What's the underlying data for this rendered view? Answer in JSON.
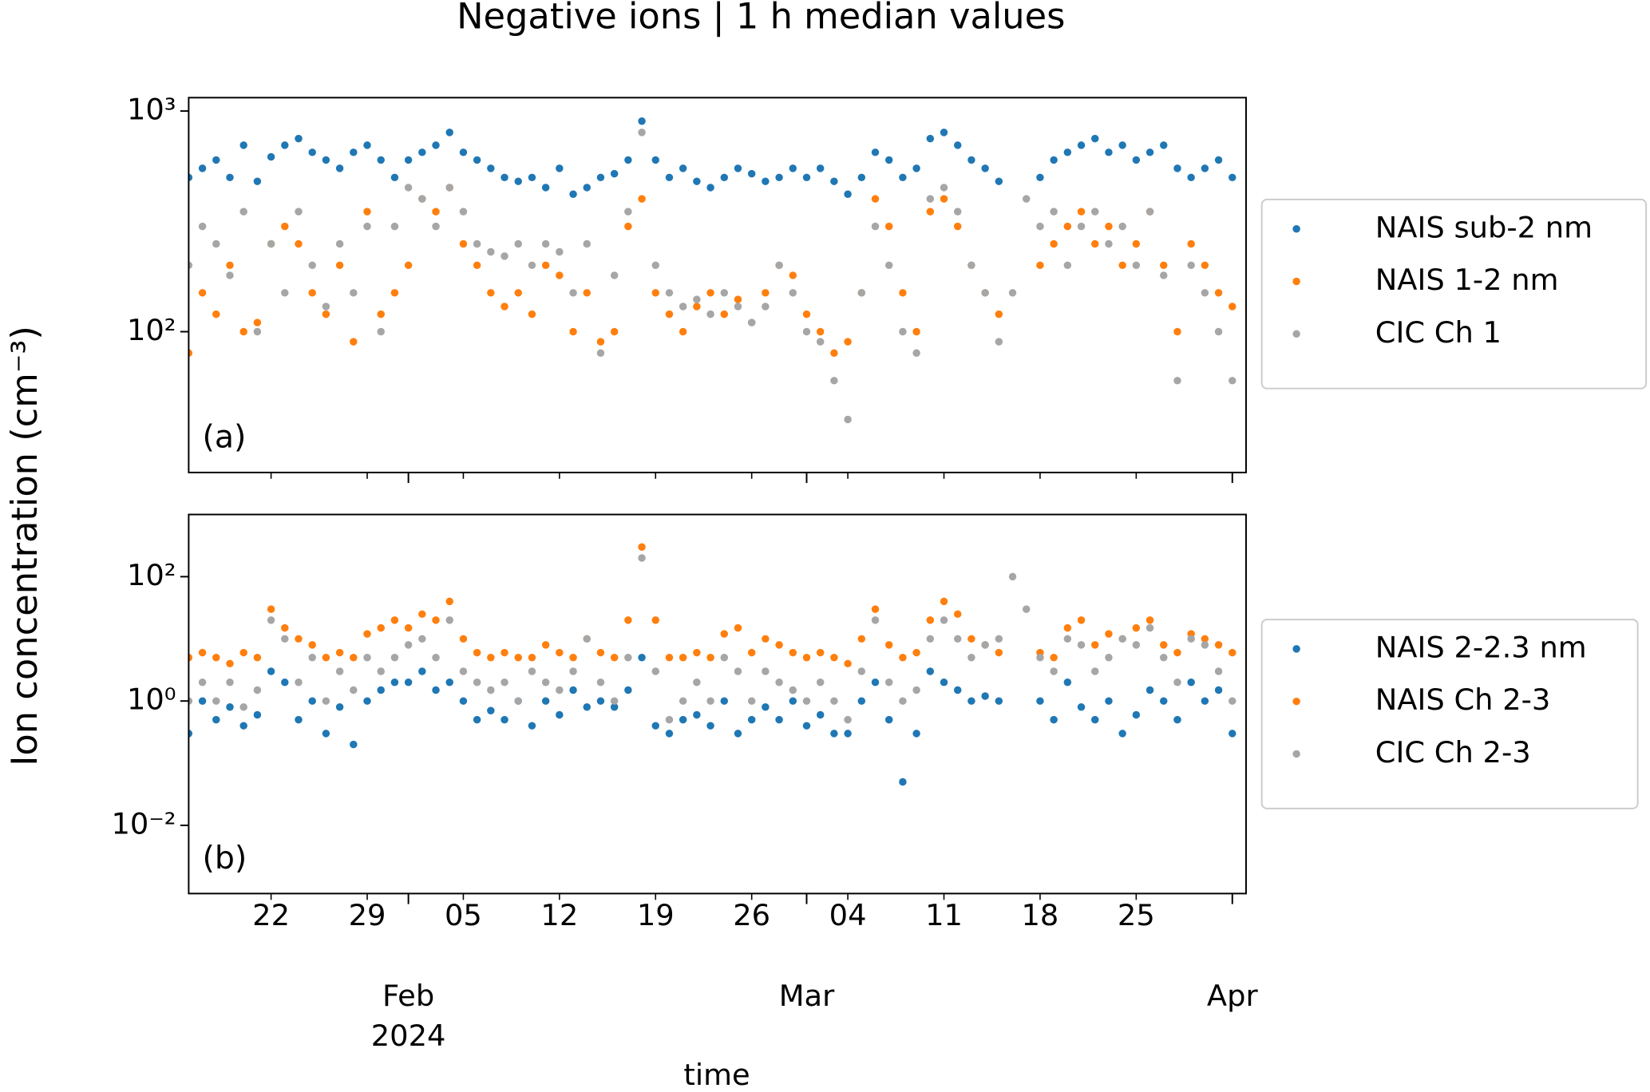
{
  "figure": {
    "title": "Negative ions | 1 h median values",
    "ylabel": "Ion concentration (cm⁻³)",
    "xlabel": "time"
  },
  "chart_data": [
    {
      "type": "scatter",
      "panel_label": "(a)",
      "log_y": true,
      "legend": "outside right",
      "xtick_labels": false,
      "xlim": [
        "2024-01-16",
        "2024-04-02"
      ],
      "ylim": [
        23,
        1150
      ],
      "yticks": [
        {
          "value": 100,
          "label": "10²"
        },
        {
          "value": 1000,
          "label": "10³"
        }
      ],
      "xticks": [
        "2024-01-22",
        "2024-01-29",
        "2024-02-05",
        "2024-02-12",
        "2024-02-19",
        "2024-02-26",
        "2024-03-04",
        "2024-03-11",
        "2024-03-18",
        "2024-03-25"
      ],
      "xticks_major": [
        "2024-02-01",
        "2024-03-01",
        "2024-04-01"
      ],
      "x": [
        "2024-01-16",
        "2024-01-17",
        "2024-01-18",
        "2024-01-19",
        "2024-01-20",
        "2024-01-21",
        "2024-01-22",
        "2024-01-23",
        "2024-01-24",
        "2024-01-25",
        "2024-01-26",
        "2024-01-27",
        "2024-01-28",
        "2024-01-29",
        "2024-01-30",
        "2024-01-31",
        "2024-02-01",
        "2024-02-02",
        "2024-02-03",
        "2024-02-04",
        "2024-02-05",
        "2024-02-06",
        "2024-02-07",
        "2024-02-08",
        "2024-02-09",
        "2024-02-10",
        "2024-02-11",
        "2024-02-12",
        "2024-02-13",
        "2024-02-14",
        "2024-02-15",
        "2024-02-16",
        "2024-02-17",
        "2024-02-18",
        "2024-02-19",
        "2024-02-20",
        "2024-02-21",
        "2024-02-22",
        "2024-02-23",
        "2024-02-24",
        "2024-02-25",
        "2024-02-26",
        "2024-02-27",
        "2024-02-28",
        "2024-02-29",
        "2024-03-01",
        "2024-03-02",
        "2024-03-03",
        "2024-03-04",
        "2024-03-05",
        "2024-03-06",
        "2024-03-07",
        "2024-03-08",
        "2024-03-09",
        "2024-03-10",
        "2024-03-11",
        "2024-03-12",
        "2024-03-13",
        "2024-03-14",
        "2024-03-15",
        "2024-03-16",
        "2024-03-17",
        "2024-03-18",
        "2024-03-19",
        "2024-03-20",
        "2024-03-21",
        "2024-03-22",
        "2024-03-23",
        "2024-03-24",
        "2024-03-25",
        "2024-03-26",
        "2024-03-27",
        "2024-03-28",
        "2024-03-29",
        "2024-03-30",
        "2024-03-31",
        "2024-04-01"
      ],
      "series": [
        {
          "name": "NAIS sub-2 nm",
          "color": "#1f77b4",
          "values": [
            500,
            550,
            600,
            500,
            700,
            480,
            620,
            700,
            750,
            650,
            600,
            550,
            650,
            700,
            600,
            500,
            600,
            650,
            700,
            800,
            650,
            600,
            550,
            500,
            480,
            500,
            450,
            550,
            420,
            450,
            500,
            520,
            600,
            900,
            600,
            500,
            550,
            480,
            450,
            500,
            550,
            520,
            480,
            500,
            550,
            500,
            550,
            480,
            420,
            500,
            650,
            600,
            500,
            550,
            750,
            800,
            700,
            600,
            550,
            480,
            null,
            null,
            500,
            600,
            650,
            700,
            750,
            650,
            700,
            600,
            650,
            700,
            550,
            500,
            550,
            600,
            500
          ]
        },
        {
          "name": "NAIS 1-2 nm",
          "color": "#ff7f0e",
          "values": [
            80,
            150,
            120,
            200,
            100,
            110,
            250,
            300,
            250,
            150,
            120,
            200,
            90,
            350,
            120,
            150,
            200,
            400,
            350,
            450,
            250,
            200,
            150,
            130,
            150,
            120,
            200,
            180,
            100,
            150,
            90,
            100,
            300,
            400,
            150,
            120,
            100,
            130,
            150,
            120,
            140,
            110,
            150,
            200,
            180,
            120,
            100,
            80,
            90,
            150,
            400,
            300,
            150,
            100,
            350,
            400,
            300,
            200,
            150,
            120,
            null,
            null,
            200,
            250,
            300,
            350,
            250,
            300,
            200,
            250,
            350,
            200,
            100,
            250,
            200,
            150,
            130
          ]
        },
        {
          "name": "CIC Ch 1",
          "color": "#a6a6a6",
          "values": [
            200,
            300,
            250,
            180,
            350,
            100,
            250,
            150,
            350,
            200,
            130,
            250,
            150,
            300,
            100,
            300,
            450,
            400,
            300,
            450,
            350,
            250,
            230,
            220,
            250,
            200,
            250,
            230,
            150,
            250,
            80,
            180,
            350,
            800,
            200,
            150,
            130,
            140,
            120,
            150,
            130,
            110,
            130,
            200,
            150,
            100,
            90,
            60,
            40,
            150,
            300,
            200,
            100,
            80,
            400,
            450,
            350,
            200,
            150,
            90,
            150,
            400,
            300,
            350,
            200,
            300,
            350,
            250,
            300,
            200,
            350,
            180,
            60,
            200,
            150,
            100,
            60
          ]
        }
      ]
    },
    {
      "type": "scatter",
      "panel_label": "(b)",
      "log_y": true,
      "legend": "outside right",
      "xtick_labels": true,
      "xlim": [
        "2024-01-16",
        "2024-04-02"
      ],
      "ylim": [
        0.0008,
        1000
      ],
      "yticks": [
        {
          "value": 0.01,
          "label": "10⁻²"
        },
        {
          "value": 1,
          "label": "10⁰"
        },
        {
          "value": 100,
          "label": "10²"
        }
      ],
      "xticks": [
        {
          "value": "2024-01-22",
          "label": "22"
        },
        {
          "value": "2024-01-29",
          "label": "29"
        },
        {
          "value": "2024-02-05",
          "label": "05"
        },
        {
          "value": "2024-02-12",
          "label": "12"
        },
        {
          "value": "2024-02-19",
          "label": "19"
        },
        {
          "value": "2024-02-26",
          "label": "26"
        },
        {
          "value": "2024-03-04",
          "label": "04"
        },
        {
          "value": "2024-03-11",
          "label": "11"
        },
        {
          "value": "2024-03-18",
          "label": "18"
        },
        {
          "value": "2024-03-25",
          "label": "25"
        }
      ],
      "xticks_major": [
        {
          "value": "2024-02-01",
          "label": "Feb"
        },
        {
          "value": "2024-03-01",
          "label": "Mar"
        },
        {
          "value": "2024-04-01",
          "label": "Apr"
        }
      ],
      "year_label": "2024",
      "x": [
        "2024-01-16",
        "2024-01-17",
        "2024-01-18",
        "2024-01-19",
        "2024-01-20",
        "2024-01-21",
        "2024-01-22",
        "2024-01-23",
        "2024-01-24",
        "2024-01-25",
        "2024-01-26",
        "2024-01-27",
        "2024-01-28",
        "2024-01-29",
        "2024-01-30",
        "2024-01-31",
        "2024-02-01",
        "2024-02-02",
        "2024-02-03",
        "2024-02-04",
        "2024-02-05",
        "2024-02-06",
        "2024-02-07",
        "2024-02-08",
        "2024-02-09",
        "2024-02-10",
        "2024-02-11",
        "2024-02-12",
        "2024-02-13",
        "2024-02-14",
        "2024-02-15",
        "2024-02-16",
        "2024-02-17",
        "2024-02-18",
        "2024-02-19",
        "2024-02-20",
        "2024-02-21",
        "2024-02-22",
        "2024-02-23",
        "2024-02-24",
        "2024-02-25",
        "2024-02-26",
        "2024-02-27",
        "2024-02-28",
        "2024-02-29",
        "2024-03-01",
        "2024-03-02",
        "2024-03-03",
        "2024-03-04",
        "2024-03-05",
        "2024-03-06",
        "2024-03-07",
        "2024-03-08",
        "2024-03-09",
        "2024-03-10",
        "2024-03-11",
        "2024-03-12",
        "2024-03-13",
        "2024-03-14",
        "2024-03-15",
        "2024-03-16",
        "2024-03-17",
        "2024-03-18",
        "2024-03-19",
        "2024-03-20",
        "2024-03-21",
        "2024-03-22",
        "2024-03-23",
        "2024-03-24",
        "2024-03-25",
        "2024-03-26",
        "2024-03-27",
        "2024-03-28",
        "2024-03-29",
        "2024-03-30",
        "2024-03-31",
        "2024-04-01"
      ],
      "series": [
        {
          "name": "NAIS 2-2.3 nm",
          "color": "#1f77b4",
          "values": [
            0.3,
            1,
            0.5,
            0.8,
            0.4,
            0.6,
            3,
            2,
            0.5,
            1,
            0.3,
            0.8,
            0.2,
            1,
            1.5,
            2,
            2,
            3,
            1.5,
            2,
            1,
            0.5,
            0.7,
            0.5,
            1,
            0.4,
            1,
            0.6,
            1.5,
            0.8,
            1,
            0.8,
            1.5,
            5,
            0.4,
            0.3,
            0.5,
            0.6,
            0.4,
            1,
            0.3,
            0.5,
            0.8,
            0.5,
            1,
            0.4,
            0.6,
            0.3,
            0.3,
            1,
            2,
            0.5,
            0.05,
            0.3,
            3,
            2,
            1.5,
            1,
            1.2,
            1,
            null,
            null,
            1,
            0.5,
            2,
            0.8,
            0.5,
            1,
            0.3,
            0.6,
            1.5,
            1,
            0.5,
            2,
            1,
            1.5,
            0.3
          ]
        },
        {
          "name": "NAIS Ch 2-3",
          "color": "#ff7f0e",
          "values": [
            5,
            6,
            5,
            4,
            6,
            5,
            30,
            15,
            10,
            8,
            5,
            6,
            5,
            12,
            15,
            20,
            15,
            25,
            20,
            40,
            10,
            6,
            5,
            6,
            5,
            5,
            8,
            6,
            5,
            10,
            6,
            5,
            20,
            300,
            20,
            5,
            5,
            6,
            5,
            12,
            15,
            6,
            10,
            8,
            6,
            5,
            6,
            5,
            4,
            10,
            30,
            8,
            5,
            6,
            20,
            40,
            25,
            10,
            8,
            6,
            null,
            null,
            6,
            5,
            15,
            20,
            8,
            12,
            10,
            15,
            20,
            8,
            6,
            12,
            10,
            8,
            6
          ]
        },
        {
          "name": "CIC Ch 2-3",
          "color": "#a6a6a6",
          "values": [
            1,
            2,
            1,
            2,
            0.8,
            1.5,
            20,
            10,
            2,
            5,
            1,
            3,
            1.5,
            5,
            3,
            5,
            8,
            10,
            5,
            20,
            3,
            2,
            1.5,
            2,
            1,
            3,
            2,
            1.5,
            3,
            10,
            2,
            1,
            5,
            200,
            3,
            0.5,
            1,
            2,
            1,
            5,
            3,
            1,
            3,
            2,
            1.5,
            1,
            2,
            1,
            0.5,
            3,
            20,
            2,
            1,
            1.5,
            10,
            20,
            10,
            5,
            8,
            10,
            100,
            30,
            5,
            3,
            10,
            8,
            3,
            5,
            10,
            8,
            15,
            5,
            2,
            10,
            8,
            3,
            1
          ]
        }
      ]
    }
  ]
}
